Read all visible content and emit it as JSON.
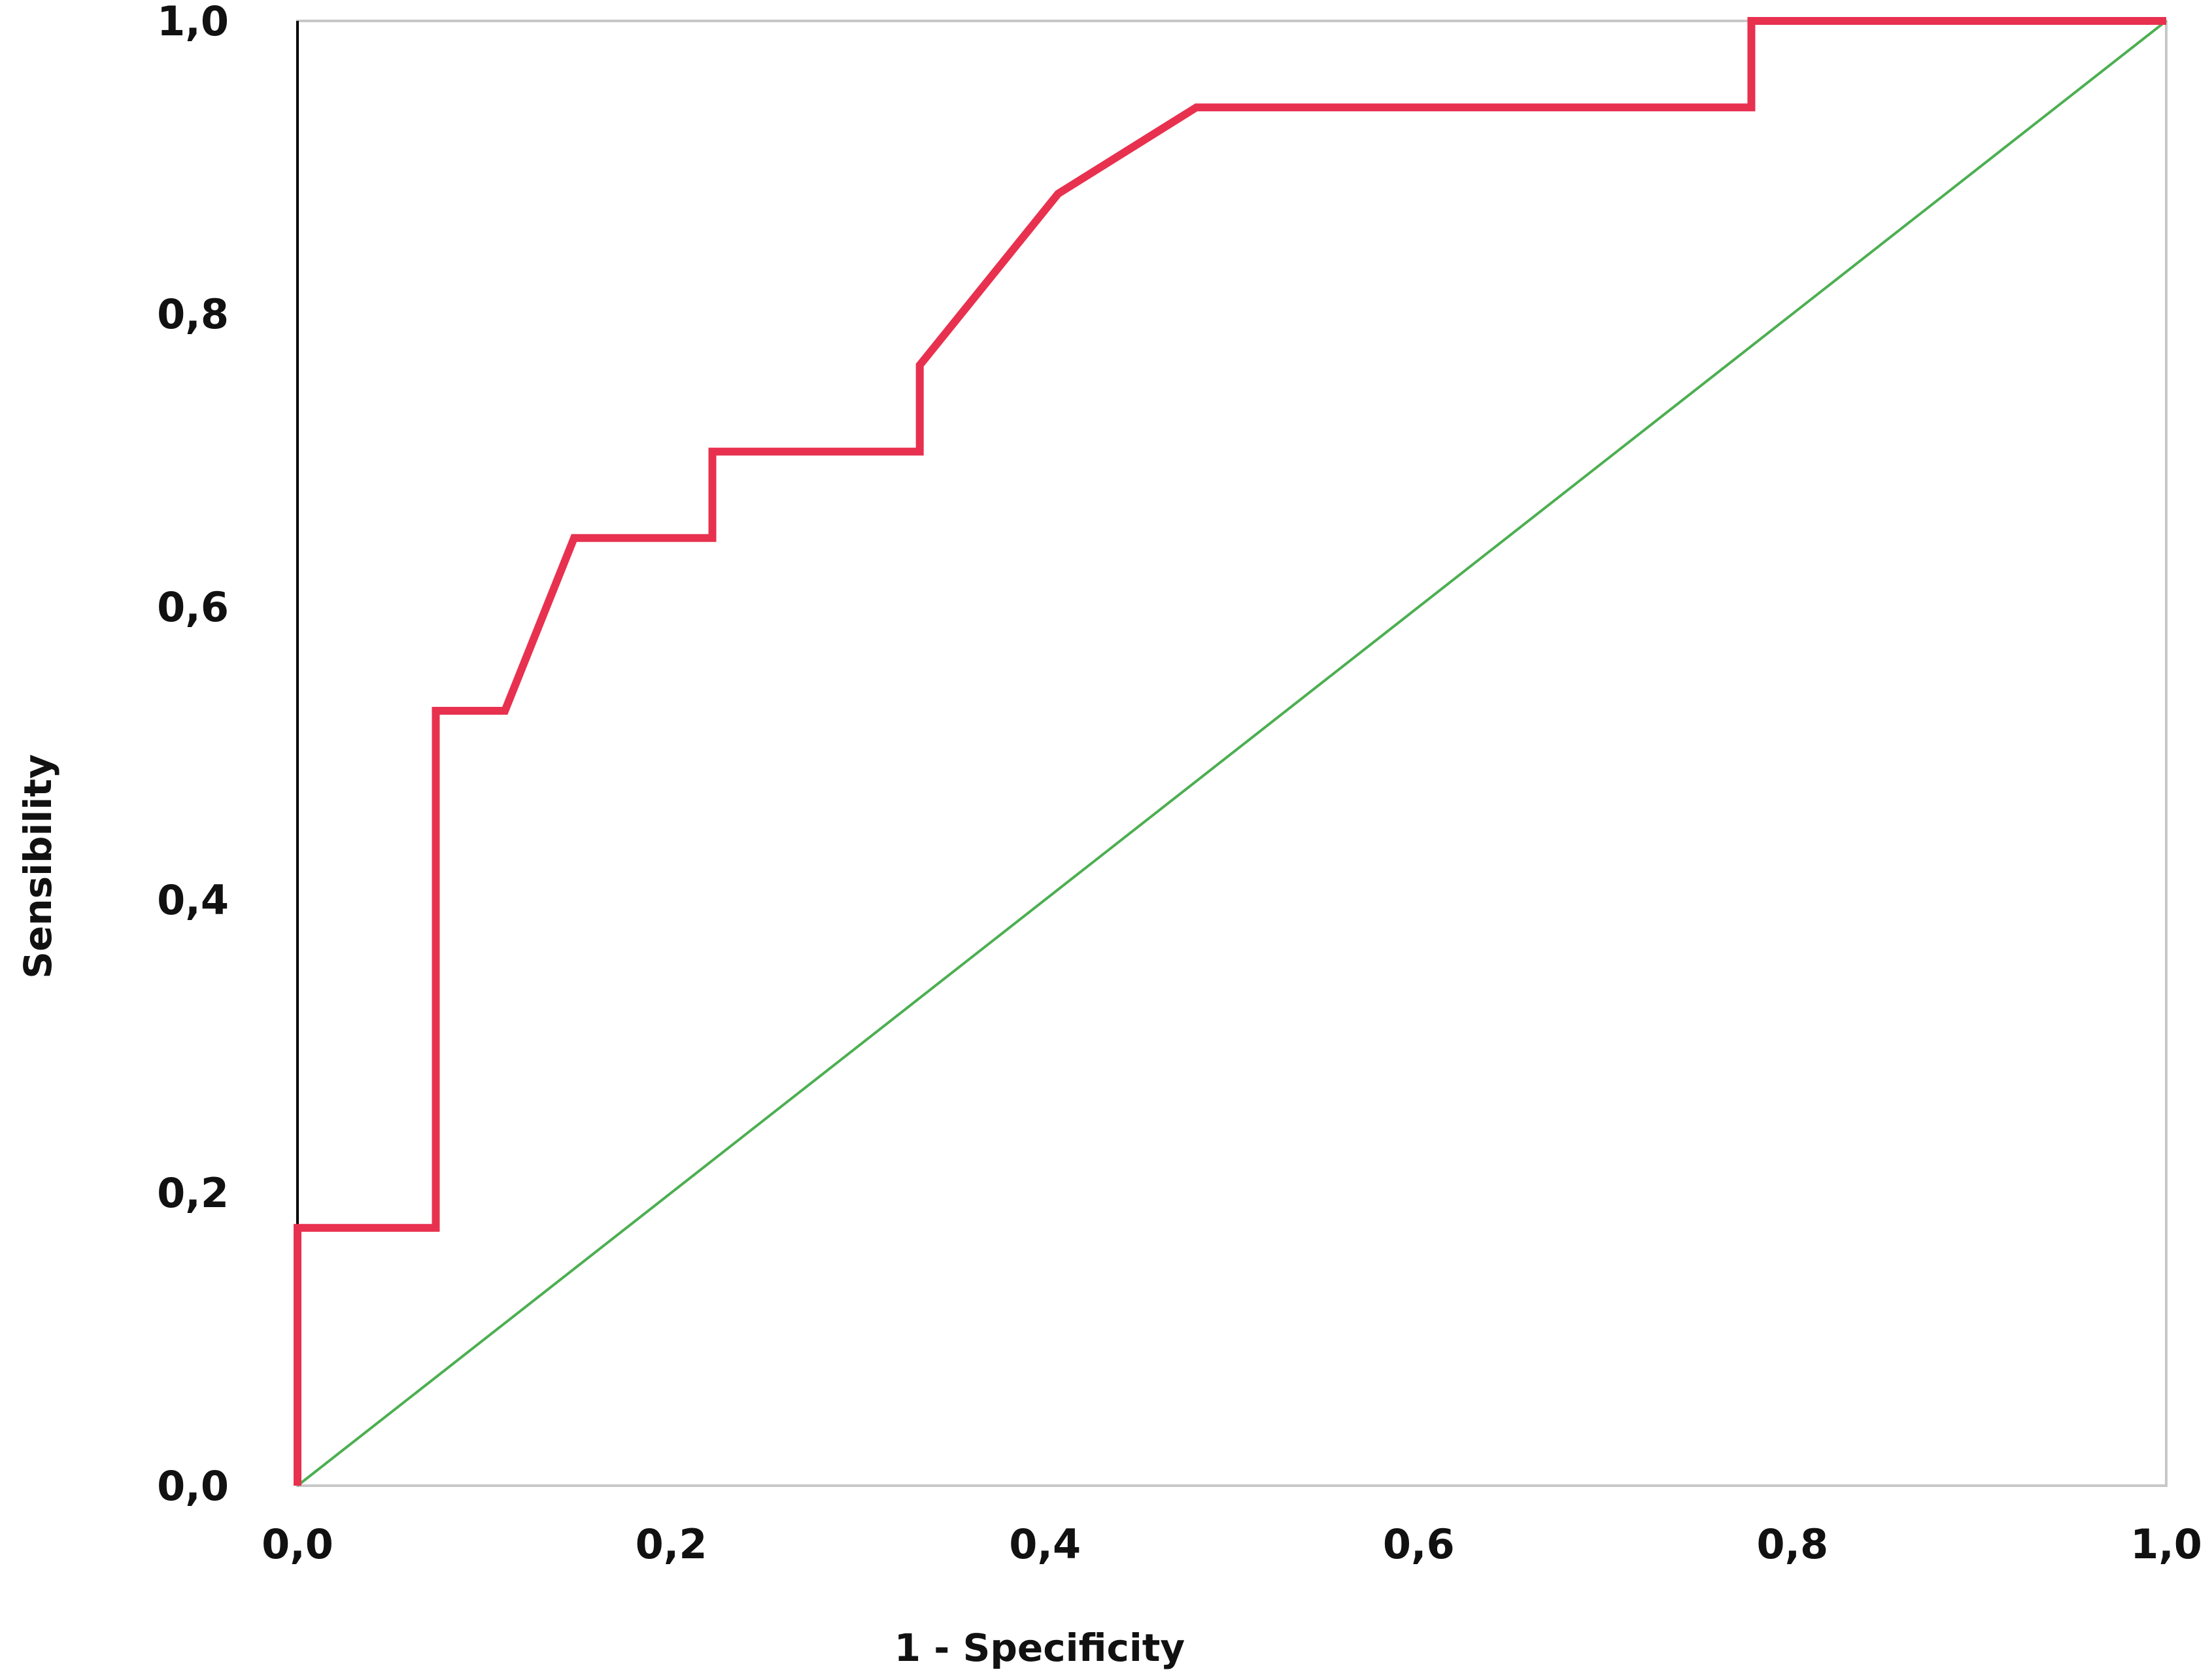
{
  "chart_data": {
    "type": "line",
    "title": "",
    "xlabel": "1 - Specificity",
    "ylabel": "Sensibility",
    "xlim": [
      0,
      1
    ],
    "ylim": [
      0,
      1
    ],
    "x_ticks": [
      "0,0",
      "0,2",
      "0,4",
      "0,6",
      "0,8",
      "1,0"
    ],
    "y_ticks": [
      "0,0",
      "0,2",
      "0,4",
      "0,6",
      "0,8",
      "1,0"
    ],
    "grid": false,
    "legend": "none",
    "series": [
      {
        "color": "#e8314f",
        "x": [
          0,
          0,
          0.074,
          0.074,
          0.111,
          0.148,
          0.222,
          0.222,
          0.333,
          0.333,
          0.407,
          0.481,
          0.778,
          0.778,
          1.0
        ],
        "y": [
          0,
          0.176,
          0.176,
          0.529,
          0.529,
          0.647,
          0.647,
          0.706,
          0.706,
          0.765,
          0.882,
          0.941,
          0.941,
          1.0,
          1.0
        ]
      },
      {
        "color": "#4caf50",
        "x": [
          0,
          1
        ],
        "y": [
          0,
          1
        ]
      }
    ]
  }
}
